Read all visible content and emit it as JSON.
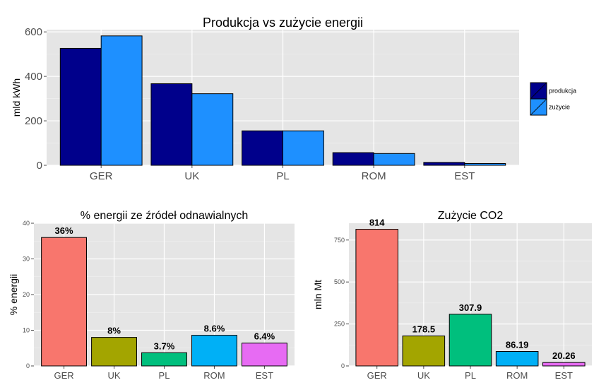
{
  "chart_data": [
    {
      "type": "bar",
      "title": "Produkcja vs zużycie energii",
      "xlabel": "",
      "ylabel": "mld kWh",
      "ylim": [
        0,
        610
      ],
      "yticks": [
        0,
        200,
        400,
        600
      ],
      "categories": [
        "GER",
        "UK",
        "PL",
        "ROM",
        "EST"
      ],
      "series": [
        {
          "name": "produkcja",
          "color": "#00008b",
          "values": [
            526,
            367,
            155,
            57,
            13
          ]
        },
        {
          "name": "zużycie",
          "color": "#1e90ff",
          "values": [
            582,
            322,
            155,
            53,
            8
          ]
        }
      ],
      "legend": "right",
      "grid": true
    },
    {
      "type": "bar",
      "title": "% energii ze źródeł odnawialnych",
      "xlabel": "",
      "ylabel": "% energii",
      "ylim": [
        0,
        40
      ],
      "yticks": [
        0,
        10,
        20,
        30,
        40
      ],
      "categories": [
        "GER",
        "UK",
        "PL",
        "ROM",
        "EST"
      ],
      "values": [
        36,
        8,
        3.7,
        8.6,
        6.4
      ],
      "labels": [
        "36%",
        "8%",
        "3.7%",
        "8.6%",
        "6.4%"
      ],
      "colors": [
        "#f8766d",
        "#a3a500",
        "#00bf7d",
        "#00b0f6",
        "#e76bf3"
      ],
      "grid": true
    },
    {
      "type": "bar",
      "title": "Zużycie CO2",
      "xlabel": "",
      "ylabel": "mln Mt",
      "ylim": [
        0,
        850
      ],
      "yticks": [
        0,
        250,
        500,
        750
      ],
      "categories": [
        "GER",
        "UK",
        "PL",
        "ROM",
        "EST"
      ],
      "values": [
        814,
        178.5,
        307.9,
        86.19,
        20.26
      ],
      "labels": [
        "814",
        "178.5",
        "307.9",
        "86.19",
        "20.26"
      ],
      "colors": [
        "#f8766d",
        "#a3a500",
        "#00bf7d",
        "#00b0f6",
        "#e76bf3"
      ],
      "grid": true
    }
  ]
}
